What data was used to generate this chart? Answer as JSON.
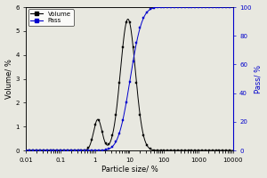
{
  "title": "",
  "xlabel": "Particle size/ μm",
  "ylabel_left": "Volume/ %",
  "ylabel_right": "Pass/ %",
  "xlim_log": [
    0.01,
    10000
  ],
  "ylim_left": [
    0,
    6
  ],
  "ylim_right": [
    0,
    100
  ],
  "yticks_left": [
    0,
    1,
    2,
    3,
    4,
    5,
    6
  ],
  "yticks_right": [
    0,
    20,
    40,
    60,
    80,
    100
  ],
  "xticks": [
    0.01,
    0.1,
    1,
    10,
    100,
    1000,
    10000
  ],
  "xtick_labels": [
    "0.01",
    "0.1",
    "1",
    "10",
    "100",
    "1000",
    "10000"
  ],
  "volume_color": "black",
  "pass_color": "#0000cc",
  "volume_marker": "s",
  "pass_marker": "s",
  "legend_volume": "Volume",
  "legend_pass": "Pass",
  "background_color": "#e8e8e0",
  "vol_peak": 9.0,
  "vol_sigma": 0.5,
  "vol_amplitude": 5.5,
  "vol_shoulder_peak": 1.2,
  "vol_shoulder_sigma": 0.28,
  "vol_shoulder_amplitude": 1.3,
  "vol_xmin": 0.15,
  "vol_xmax": 80.0,
  "pass_mu_log": 2.35,
  "pass_sigma_log": 0.62,
  "pass_xstart": 0.5
}
